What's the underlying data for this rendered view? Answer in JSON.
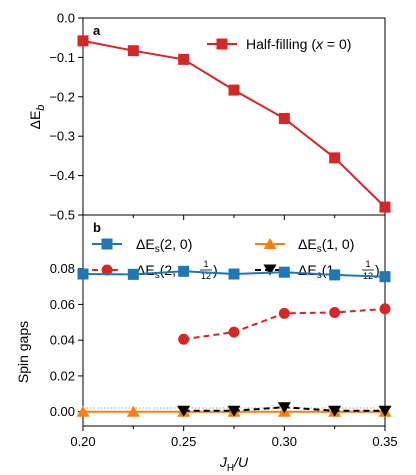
{
  "chart_data": [
    {
      "panel": "a",
      "type": "line",
      "ylabel": "ΔE_b",
      "xlim": [
        0.2,
        0.35
      ],
      "ylim": [
        -0.5,
        0.0
      ],
      "yticks": [
        "0.0",
        "−0.1",
        "−0.2",
        "−0.3",
        "−0.4",
        "−0.5"
      ],
      "legend_position": "top-right",
      "series": [
        {
          "name": "Half-filling (x = 0)",
          "color": "#d62728",
          "marker": "square",
          "linestyle": "solid",
          "x": [
            0.2,
            0.225,
            0.25,
            0.275,
            0.3,
            0.325,
            0.35
          ],
          "y": [
            -0.058,
            -0.083,
            -0.105,
            -0.183,
            -0.255,
            -0.355,
            -0.48
          ]
        }
      ]
    },
    {
      "panel": "b",
      "type": "line",
      "xlabel": "J_H/U",
      "ylabel": "Spin gaps",
      "xlim": [
        0.2,
        0.35
      ],
      "ylim": [
        -0.008,
        0.11
      ],
      "xticks": [
        "0.20",
        "0.25",
        "0.30",
        "0.35"
      ],
      "yticks": [
        "0.00",
        "0.02",
        "0.04",
        "0.06",
        "0.08"
      ],
      "legend_position": "top",
      "series": [
        {
          "name": "ΔE_s(2, 0)",
          "color": "#1f77b4",
          "marker": "square",
          "linestyle": "solid",
          "x": [
            0.2,
            0.225,
            0.25,
            0.275,
            0.3,
            0.325,
            0.35
          ],
          "y": [
            0.077,
            0.0768,
            0.0785,
            0.077,
            0.078,
            0.0765,
            0.0755
          ]
        },
        {
          "name": "ΔE_s(2, 1/12)",
          "color": "#d62728",
          "marker": "circle",
          "linestyle": "dashed",
          "x": [
            0.25,
            0.275,
            0.3,
            0.325,
            0.35
          ],
          "y": [
            0.0405,
            0.0445,
            0.055,
            0.0555,
            0.0575
          ]
        },
        {
          "name": "ΔE_s(1, 0)",
          "color": "#ff7f0e",
          "marker": "triangle-up",
          "linestyle": "solid",
          "x": [
            0.2,
            0.225,
            0.25,
            0.275,
            0.3,
            0.325,
            0.35
          ],
          "y": [
            0.0,
            0.0,
            0.0,
            0.0,
            0.0,
            0.0,
            0.0
          ]
        },
        {
          "name": "ΔE_s(1, 1/12)",
          "color": "#000000",
          "marker": "triangle-down",
          "linestyle": "dashed",
          "x": [
            0.25,
            0.275,
            0.3,
            0.325,
            0.35
          ],
          "y": [
            0.0005,
            0.0005,
            0.0025,
            0.0005,
            0.0005
          ]
        }
      ]
    }
  ],
  "labels": {
    "panel_a": "a",
    "panel_b": "b",
    "legend_a": "Half-filling (",
    "legend_a_var": "x",
    "legend_a_tail": " = 0)",
    "ylabel_a_main": "ΔE",
    "ylabel_a_sub": "b",
    "ylabel_b": "Spin gaps",
    "xlabel_main": "J",
    "xlabel_sub": "H",
    "xlabel_tail": "/U",
    "leg_delta": "ΔE",
    "leg_sub": "s",
    "leg1_args": "(2, 0)",
    "leg2_pre": "(2, ",
    "leg2_num": "1",
    "leg2_den": "12",
    "leg2_post": ")",
    "leg3_args": "(1, 0)",
    "leg4_pre": "(1, ",
    "leg4_num": "1",
    "leg4_den": "12",
    "leg4_post": ")"
  }
}
